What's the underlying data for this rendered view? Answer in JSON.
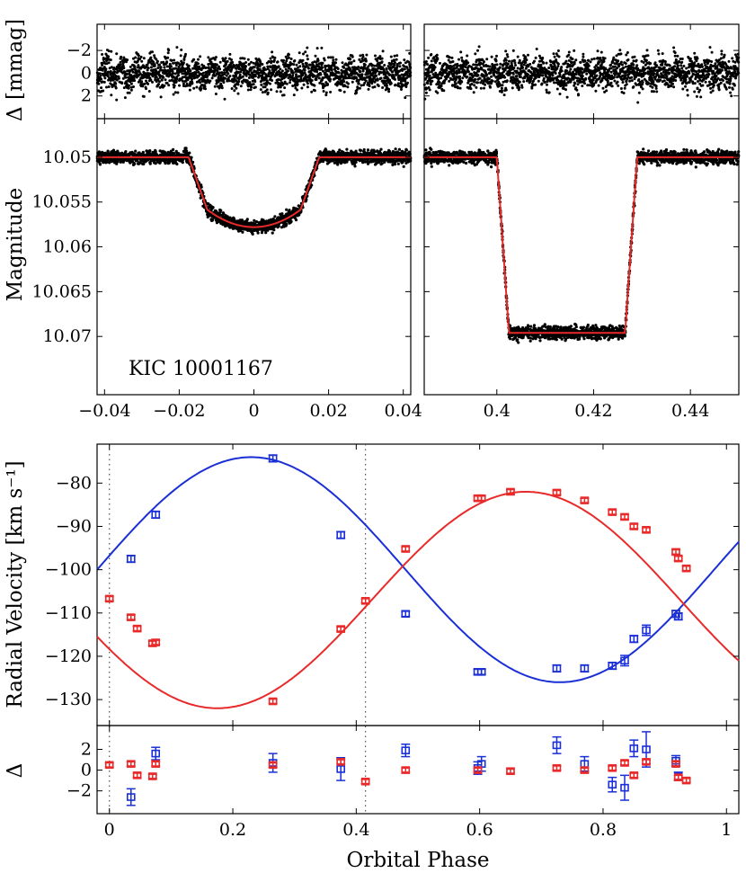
{
  "figure": {
    "star_label": "KIC 10001167",
    "phot_ylabel": "Magnitude",
    "resid_ylabel_top": "Δ [mmag]",
    "rv_ylabel": "Radial Velocity [km s⁻¹]",
    "resid_ylabel_bottom": "Δ",
    "xlabel": "Orbital Phase"
  },
  "colors": {
    "primary": "#1a2fd6",
    "secondary": "#e82a2a",
    "points": "#000000",
    "frame": "#000000"
  },
  "chart_data": [
    {
      "id": "primary-eclipse",
      "type": "scatter",
      "title": "",
      "xlim": [
        -0.042,
        0.042
      ],
      "ylim": [
        10.0765,
        10.0457
      ],
      "xticks": [
        -0.04,
        -0.02,
        0,
        0.02,
        0.04
      ],
      "xtick_labels": [
        "−0.04",
        "−0.02",
        "0",
        "0.02",
        "0.04"
      ],
      "yticks": [
        10.05,
        10.055,
        10.06,
        10.065,
        10.07
      ],
      "ytick_labels": [
        "10.05",
        "10.055",
        "10.06",
        "10.065",
        "10.07"
      ],
      "model": {
        "baseline_mag": 10.05,
        "depth_mag": 0.0078,
        "ingress_start": -0.0175,
        "flat_start": -0.0125,
        "flat_end": 0.0125,
        "egress_end": 0.0175,
        "center": 0.0
      },
      "scatter_mag": 0.0006
    },
    {
      "id": "secondary-eclipse",
      "type": "scatter",
      "xlim": [
        0.385,
        0.45
      ],
      "ylim": [
        10.0765,
        10.0457
      ],
      "xticks": [
        0.4,
        0.42,
        0.44
      ],
      "xtick_labels": [
        "0.4",
        "0.42",
        "0.44"
      ],
      "model": {
        "baseline_mag": 10.05,
        "depth_mag": 0.0196,
        "ingress_start": 0.4,
        "flat_start": 0.4025,
        "flat_end": 0.4265,
        "egress_end": 0.429
      },
      "scatter_mag": 0.0006
    },
    {
      "id": "phot-residuals",
      "type": "scatter",
      "ylabel": "Δ [mmag]",
      "ylim": [
        4.0,
        -4.3
      ],
      "yticks": [
        -2,
        0,
        2
      ],
      "ytick_labels": [
        "−2",
        "0",
        "2"
      ],
      "scatter_mmag": 0.9
    },
    {
      "id": "radial-velocity",
      "type": "scatter",
      "xlim": [
        -0.02,
        1.02
      ],
      "ylim": [
        -136,
        -71
      ],
      "yticks": [
        -130,
        -120,
        -110,
        -100,
        -90,
        -80
      ],
      "ytick_labels": [
        "−130",
        "−120",
        "−110",
        "−100",
        "−90",
        "−80"
      ],
      "dotted_lines_x": [
        0.0,
        0.415
      ],
      "series": [
        {
          "name": "primary",
          "color": "#1a2fd6",
          "model": {
            "gamma": -100.0,
            "K": 26.0,
            "phase_of_max": 0.23
          },
          "points": [
            {
              "x": 0.035,
              "y": -97.5,
              "err": 0.8
            },
            {
              "x": 0.075,
              "y": -87.3,
              "err": 0.8
            },
            {
              "x": 0.265,
              "y": -74.3,
              "err": 0.8
            },
            {
              "x": 0.375,
              "y": -92.0,
              "err": 0.8
            },
            {
              "x": 0.48,
              "y": -110.2,
              "err": 0.6
            },
            {
              "x": 0.597,
              "y": -123.6,
              "err": 0.6
            },
            {
              "x": 0.603,
              "y": -123.6,
              "err": 0.6
            },
            {
              "x": 0.725,
              "y": -122.8,
              "err": 0.8
            },
            {
              "x": 0.77,
              "y": -122.8,
              "err": 0.8
            },
            {
              "x": 0.815,
              "y": -122.2,
              "err": 0.8
            },
            {
              "x": 0.835,
              "y": -121.0,
              "err": 1.2
            },
            {
              "x": 0.85,
              "y": -116.0,
              "err": 0.8
            },
            {
              "x": 0.87,
              "y": -114.0,
              "err": 1.2
            },
            {
              "x": 0.918,
              "y": -110.2,
              "err": 0.8
            },
            {
              "x": 0.922,
              "y": -110.8,
              "err": 0.8
            }
          ]
        },
        {
          "name": "secondary",
          "color": "#e82a2a",
          "model": {
            "gamma": -107.0,
            "K": 25.0,
            "phase_of_max": 0.675
          },
          "points": [
            {
              "x": 0.0,
              "y": -106.7,
              "err": 0.5
            },
            {
              "x": 0.035,
              "y": -111.0,
              "err": 0.5
            },
            {
              "x": 0.045,
              "y": -113.6,
              "err": 0.5
            },
            {
              "x": 0.07,
              "y": -117.0,
              "err": 0.5
            },
            {
              "x": 0.075,
              "y": -116.8,
              "err": 0.5
            },
            {
              "x": 0.265,
              "y": -130.4,
              "err": 0.5
            },
            {
              "x": 0.375,
              "y": -113.7,
              "err": 0.5
            },
            {
              "x": 0.415,
              "y": -107.2,
              "err": 0.5
            },
            {
              "x": 0.48,
              "y": -95.2,
              "err": 0.5
            },
            {
              "x": 0.597,
              "y": -83.5,
              "err": 0.5
            },
            {
              "x": 0.603,
              "y": -83.5,
              "err": 0.5
            },
            {
              "x": 0.65,
              "y": -82.0,
              "err": 0.5
            },
            {
              "x": 0.725,
              "y": -82.2,
              "err": 0.5
            },
            {
              "x": 0.77,
              "y": -84.0,
              "err": 0.5
            },
            {
              "x": 0.815,
              "y": -86.7,
              "err": 0.5
            },
            {
              "x": 0.835,
              "y": -87.8,
              "err": 0.5
            },
            {
              "x": 0.85,
              "y": -90.0,
              "err": 0.5
            },
            {
              "x": 0.87,
              "y": -90.8,
              "err": 0.5
            },
            {
              "x": 0.918,
              "y": -95.9,
              "err": 0.5
            },
            {
              "x": 0.922,
              "y": -97.4,
              "err": 0.5
            },
            {
              "x": 0.935,
              "y": -99.7,
              "err": 0.5
            }
          ]
        }
      ]
    },
    {
      "id": "rv-residuals",
      "type": "scatter",
      "ylabel": "Δ",
      "xlim": [
        -0.02,
        1.02
      ],
      "ylim": [
        -4.2,
        4.3
      ],
      "xticks": [
        0,
        0.2,
        0.4,
        0.6,
        0.8,
        1
      ],
      "xtick_labels": [
        "0",
        "0.2",
        "0.4",
        "0.6",
        "0.8",
        "1"
      ],
      "yticks": [
        -2,
        0,
        2
      ],
      "ytick_labels": [
        "−2",
        "0",
        "2"
      ],
      "dotted_lines_x": [
        0.0,
        0.415
      ],
      "series": [
        {
          "name": "primary",
          "color": "#1a2fd6",
          "points": [
            {
              "x": 0.035,
              "y": -2.6,
              "err": 0.8
            },
            {
              "x": 0.075,
              "y": 1.6,
              "err": 0.6
            },
            {
              "x": 0.265,
              "y": 0.7,
              "err": 0.9
            },
            {
              "x": 0.375,
              "y": 0.1,
              "err": 1.1
            },
            {
              "x": 0.48,
              "y": 1.9,
              "err": 0.6
            },
            {
              "x": 0.597,
              "y": 0.2,
              "err": 0.6
            },
            {
              "x": 0.603,
              "y": 0.6,
              "err": 0.7
            },
            {
              "x": 0.725,
              "y": 2.4,
              "err": 0.8
            },
            {
              "x": 0.77,
              "y": 0.6,
              "err": 0.7
            },
            {
              "x": 0.815,
              "y": -1.4,
              "err": 0.7
            },
            {
              "x": 0.835,
              "y": -1.7,
              "err": 1.2
            },
            {
              "x": 0.85,
              "y": 2.1,
              "err": 0.8
            },
            {
              "x": 0.87,
              "y": 2.0,
              "err": 1.7
            },
            {
              "x": 0.918,
              "y": 0.9,
              "err": 0.5
            },
            {
              "x": 0.922,
              "y": -0.6,
              "err": 0.4
            }
          ]
        },
        {
          "name": "secondary",
          "color": "#e82a2a",
          "points": [
            {
              "x": 0.0,
              "y": 0.5,
              "err": 0.2
            },
            {
              "x": 0.035,
              "y": 0.6,
              "err": 0.2
            },
            {
              "x": 0.045,
              "y": -0.5,
              "err": 0.2
            },
            {
              "x": 0.07,
              "y": -0.6,
              "err": 0.2
            },
            {
              "x": 0.075,
              "y": 0.6,
              "err": 0.2
            },
            {
              "x": 0.265,
              "y": 0.5,
              "err": 0.2
            },
            {
              "x": 0.375,
              "y": 0.8,
              "err": 0.2
            },
            {
              "x": 0.415,
              "y": -1.1,
              "err": 0.2
            },
            {
              "x": 0.48,
              "y": 0.0,
              "err": 0.2
            },
            {
              "x": 0.597,
              "y": 0.0,
              "err": 0.2
            },
            {
              "x": 0.65,
              "y": -0.1,
              "err": 0.2
            },
            {
              "x": 0.725,
              "y": 0.2,
              "err": 0.2
            },
            {
              "x": 0.77,
              "y": 0.0,
              "err": 0.2
            },
            {
              "x": 0.815,
              "y": 0.2,
              "err": 0.2
            },
            {
              "x": 0.835,
              "y": 0.7,
              "err": 0.2
            },
            {
              "x": 0.85,
              "y": -0.5,
              "err": 0.2
            },
            {
              "x": 0.87,
              "y": 0.8,
              "err": 0.2
            },
            {
              "x": 0.918,
              "y": 0.6,
              "err": 0.2
            },
            {
              "x": 0.922,
              "y": -0.7,
              "err": 0.2
            },
            {
              "x": 0.935,
              "y": -1.0,
              "err": 0.2
            }
          ]
        }
      ]
    }
  ]
}
